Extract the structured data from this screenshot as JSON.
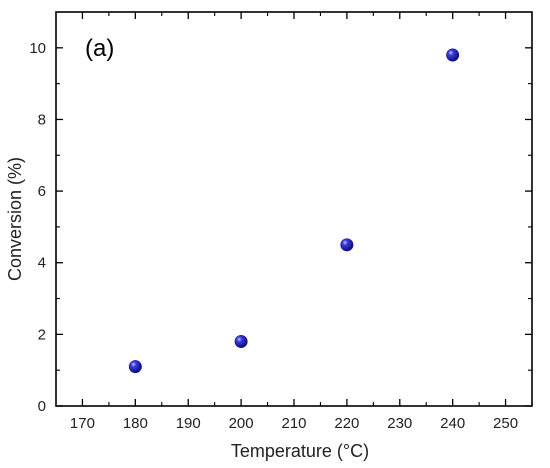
{
  "chart_data": {
    "type": "scatter",
    "panel_label": "(a)",
    "xlabel": "Temperature (°C)",
    "ylabel": "Conversion (%)",
    "xlim": [
      165,
      255
    ],
    "ylim": [
      0,
      11
    ],
    "xticks": [
      170,
      180,
      190,
      200,
      210,
      220,
      230,
      240,
      250
    ],
    "yticks": [
      0,
      2,
      4,
      6,
      8,
      10
    ],
    "grid": false,
    "marker_color": "#1a1aa6",
    "points": [
      {
        "x": 180,
        "y": 1.1
      },
      {
        "x": 200,
        "y": 1.8
      },
      {
        "x": 220,
        "y": 4.5
      },
      {
        "x": 240,
        "y": 9.8
      }
    ]
  }
}
